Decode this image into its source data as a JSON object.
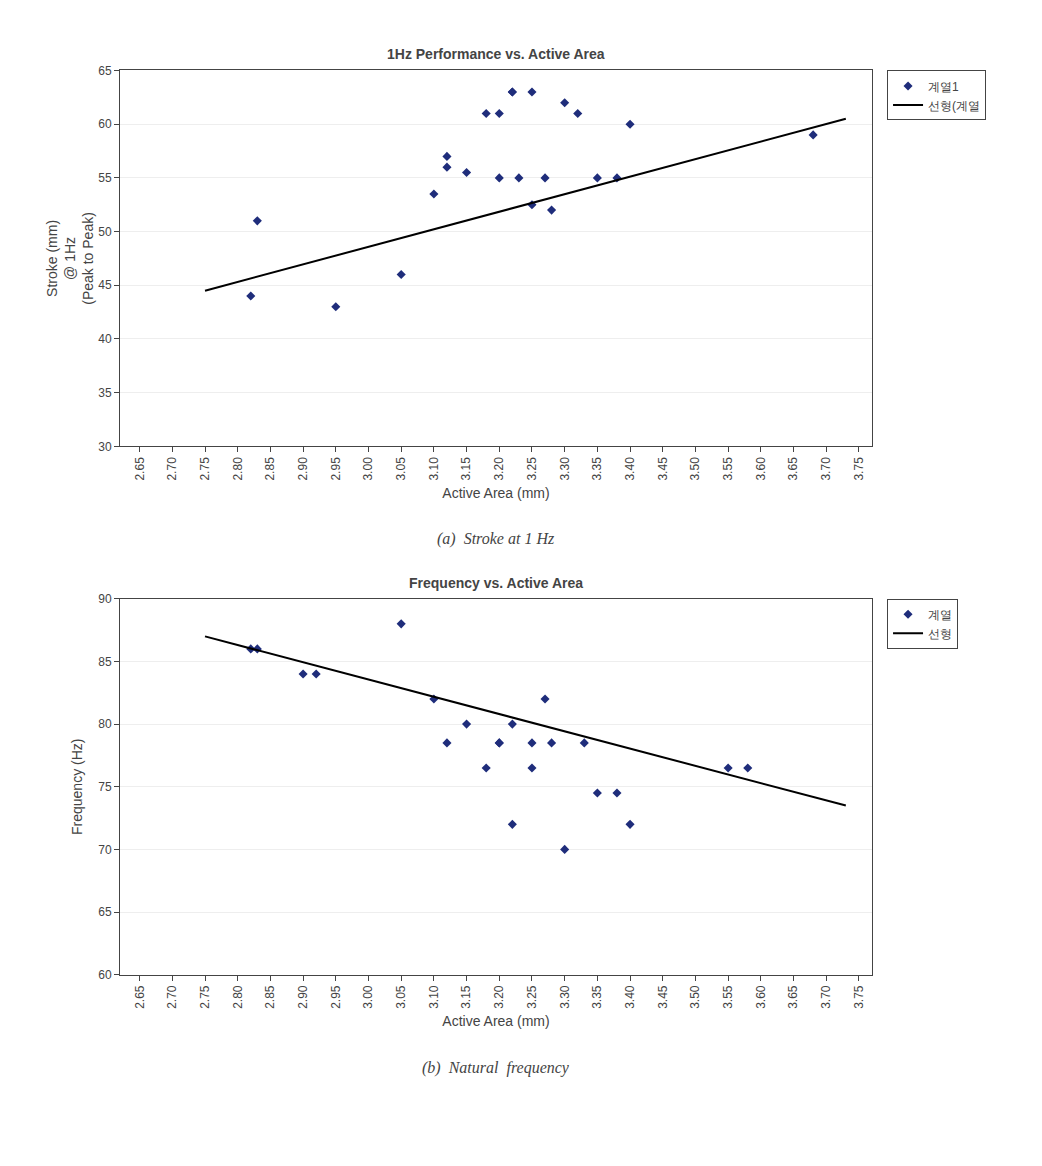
{
  "chart_data": [
    {
      "type": "scatter",
      "title": "1Hz Performance vs. Active Area",
      "xlabel": "Active Area (mm)",
      "ylabel": "Stroke (mm)\n@ 1Hz\n(Peak to Peak)",
      "annotations": [
        "(a)  Stroke at 1 Hz"
      ],
      "series": [
        {
          "name": "계열1",
          "type": "scatter",
          "color": "#1F2D7B",
          "marker": "diamond",
          "x": [
            2.82,
            2.83,
            2.95,
            3.05,
            3.1,
            3.12,
            3.12,
            3.15,
            3.18,
            3.2,
            3.2,
            3.22,
            3.22,
            3.23,
            3.25,
            3.25,
            3.27,
            3.28,
            3.3,
            3.32,
            3.35,
            3.38,
            3.4,
            3.68
          ],
          "values": [
            44.0,
            51.0,
            43.0,
            46.0,
            53.5,
            57.0,
            56.0,
            55.5,
            61.0,
            61.0,
            55.0,
            63.0,
            63.0,
            55.0,
            52.5,
            63.0,
            55.0,
            52.0,
            62.0,
            61.0,
            55.0,
            55.0,
            60.0,
            59.0
          ]
        },
        {
          "name": "선형(계열",
          "type": "line",
          "color": "#000000",
          "line_style": "solid",
          "x": [
            2.75,
            3.73
          ],
          "values": [
            44.5,
            60.5
          ]
        }
      ],
      "xlim": [
        2.62,
        3.77
      ],
      "xticks": [
        2.65,
        {
          "value": 2.7,
          "label": "2.70"
        },
        2.75,
        {
          "value": 2.8,
          "label": "2.80"
        },
        2.85,
        {
          "value": 2.9,
          "label": "2.90"
        },
        2.95,
        {
          "value": 3.0,
          "label": "3.00"
        },
        3.05,
        {
          "value": 3.1,
          "label": "3.10"
        },
        3.15,
        {
          "value": 3.2,
          "label": "3.20"
        },
        3.25,
        {
          "value": 3.3,
          "label": "3.30"
        },
        3.35,
        {
          "value": 3.4,
          "label": "3.40"
        },
        3.45,
        {
          "value": 3.5,
          "label": "3.50"
        },
        3.55,
        {
          "value": 3.6,
          "label": "3.60"
        },
        3.65,
        {
          "value": 3.7,
          "label": "3.70"
        },
        3.75
      ],
      "ylim": [
        30,
        65
      ],
      "yticks": [
        30,
        35,
        40,
        45,
        50,
        55,
        60,
        65
      ],
      "grid": "y",
      "legend": "right"
    },
    {
      "type": "scatter",
      "title": "Frequency vs. Active Area",
      "xlabel": "Active Area (mm)",
      "ylabel": "Frequency (Hz)",
      "annotations": [
        "(b)  Natural  frequency"
      ],
      "series": [
        {
          "name": "계열",
          "type": "scatter",
          "color": "#1F2D7B",
          "marker": "diamond",
          "x": [
            2.82,
            2.83,
            2.9,
            2.92,
            3.05,
            3.1,
            3.12,
            3.15,
            3.18,
            3.2,
            3.2,
            3.22,
            3.22,
            3.25,
            3.25,
            3.27,
            3.28,
            3.3,
            3.33,
            3.35,
            3.38,
            3.4,
            3.55,
            3.58
          ],
          "values": [
            86.0,
            86.0,
            84.0,
            84.0,
            88.0,
            82.0,
            78.5,
            80.0,
            76.5,
            78.5,
            78.5,
            72.0,
            80.0,
            78.5,
            76.5,
            82.0,
            78.5,
            70.0,
            78.5,
            74.5,
            74.5,
            72.0,
            76.5,
            76.5
          ]
        },
        {
          "name": "선형",
          "type": "line",
          "color": "#000000",
          "line_style": "solid",
          "x": [
            2.75,
            3.73
          ],
          "values": [
            87.0,
            73.5
          ]
        }
      ],
      "xlim": [
        2.62,
        3.77
      ],
      "xticks": [
        2.65,
        {
          "value": 2.7,
          "label": "2.70"
        },
        2.75,
        {
          "value": 2.8,
          "label": "2.80"
        },
        2.85,
        {
          "value": 2.9,
          "label": "2.90"
        },
        2.95,
        {
          "value": 3.0,
          "label": "3.00"
        },
        3.05,
        {
          "value": 3.1,
          "label": "3.10"
        },
        3.15,
        {
          "value": 3.2,
          "label": "3.20"
        },
        3.25,
        {
          "value": 3.3,
          "label": "3.30"
        },
        3.35,
        {
          "value": 3.4,
          "label": "3.40"
        },
        3.45,
        {
          "value": 3.5,
          "label": "3.50"
        },
        3.55,
        {
          "value": 3.6,
          "label": "3.60"
        },
        3.65,
        {
          "value": 3.7,
          "label": "3.70"
        },
        3.75
      ],
      "ylim": [
        60,
        90
      ],
      "yticks": [
        60,
        65,
        70,
        75,
        80,
        85,
        90
      ],
      "grid": "y",
      "legend": "right"
    }
  ]
}
